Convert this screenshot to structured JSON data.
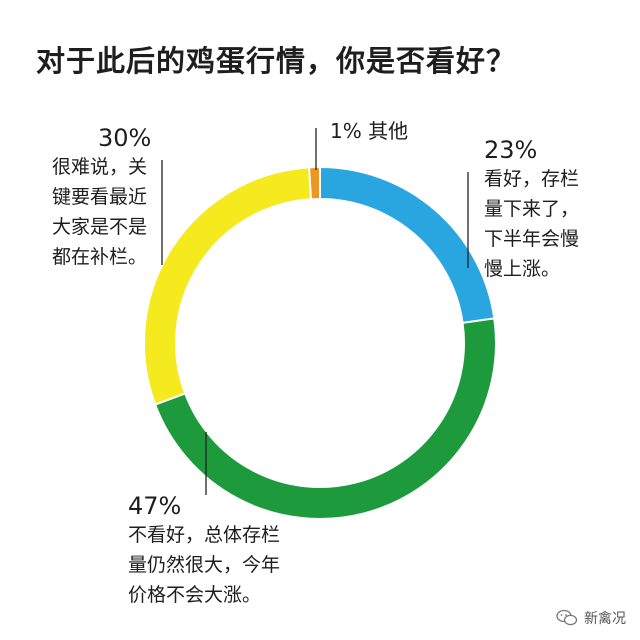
{
  "title": "对于此后的鸡蛋行情，你是否看好？",
  "chart_data": {
    "type": "pie",
    "donut": true,
    "title": "对于此后的鸡蛋行情，你是否看好？",
    "slices": [
      {
        "label": "看好，存栏量下来了，下半年会慢慢上涨。",
        "percent_label": "23%",
        "value": 23,
        "color": "#29a6e0"
      },
      {
        "label": "不看好，总体存栏量仍然很大，今年价格不会大涨。",
        "percent_label": "47%",
        "value": 47,
        "color": "#1d9a3c"
      },
      {
        "label": "很难说，关键要看最近大家是不是都在补栏。",
        "percent_label": "30%",
        "value": 30,
        "color": "#f4ea1d"
      },
      {
        "label": "其他",
        "percent_label": "1%",
        "value": 1,
        "color": "#ef9521"
      }
    ]
  },
  "labels": {
    "other": {
      "pct": "1%",
      "text": "其他"
    },
    "bullish": {
      "pct": "23%",
      "text": "看好，存栏\n量下来了，\n下半年会慢\n慢上涨。"
    },
    "bearish": {
      "pct": "47%",
      "text": "不看好，总体存栏\n量仍然很大，今年\n价格不会大涨。"
    },
    "unsure": {
      "pct": "30%",
      "text": "很难说，关\n键要看最近\n大家是不是\n都在补栏。"
    }
  },
  "watermark": {
    "text": "新禽况"
  }
}
